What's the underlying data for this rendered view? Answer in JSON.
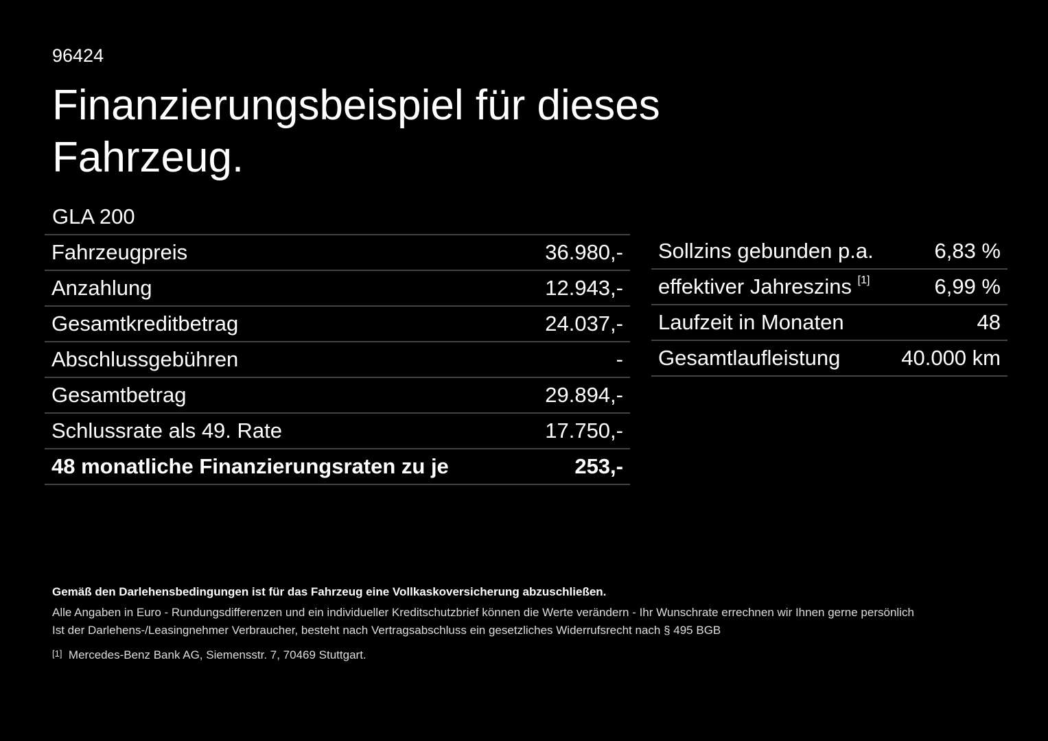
{
  "header": {
    "code": "96424",
    "title_line1": "Finanzierungsbeispiel für dieses",
    "title_line2": "Fahrzeug."
  },
  "model": "GLA 200",
  "left_table": {
    "rows": [
      [
        "Fahrzeugpreis",
        "36.980,-"
      ],
      [
        "Anzahlung",
        "12.943,-"
      ],
      [
        "Gesamtkreditbetrag",
        "24.037,-"
      ],
      [
        "Abschlussgebühren",
        "-"
      ],
      [
        "Gesamtbetrag",
        "29.894,-"
      ],
      [
        "Schlussrate als 49. Rate",
        "17.750,-"
      ],
      [
        "48 monatliche Finanzierungsraten zu je",
        "253,-"
      ]
    ]
  },
  "right_table": {
    "rows": [
      [
        "Sollzins gebunden p.a.",
        "6,83 %"
      ],
      [
        "effektiver Jahreszins",
        "6,99 %"
      ],
      [
        "Laufzeit in Monaten",
        "48"
      ],
      [
        "Gesamtlaufleistung",
        "40.000 km"
      ]
    ],
    "footnote_ref": "[1]"
  },
  "footer": {
    "bold": "Gemäß den Darlehensbedingungen ist für das Fahrzeug eine Vollkaskoversicherung abzuschließen.",
    "line1": "Alle Angaben in Euro - Rundungsdifferenzen und ein individueller Kreditschutzbrief können die Werte verändern - Ihr Wunschrate errechnen wir Ihnen gerne persönlich",
    "line2": "Ist der Darlehens-/Leasingnehmer Verbraucher, besteht nach Vertragsabschluss ein gesetzliches Widerrufsrecht nach § 495 BGB",
    "note_mark": "[1]",
    "note": "Mercedes-Benz Bank AG, Siemensstr. 7, 70469 Stuttgart."
  }
}
